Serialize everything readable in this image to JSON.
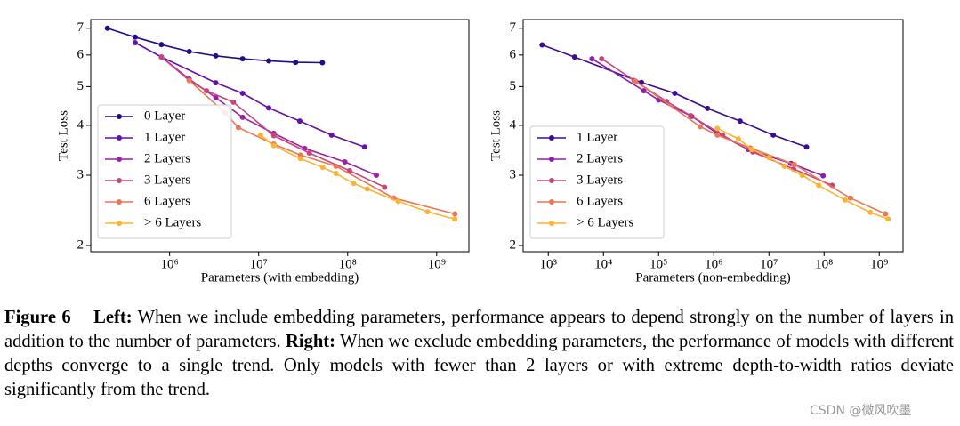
{
  "chart_data": [
    {
      "type": "line",
      "xlabel": "Parameters (with embedding)",
      "ylabel": "Test Loss",
      "xscale": "log",
      "yscale": "log",
      "xlim": [
        130000,
        2300000000
      ],
      "ylim": [
        1.93,
        7.36
      ],
      "xticks": [
        {
          "value": 1000000,
          "label": "10⁶"
        },
        {
          "value": 10000000,
          "label": "10⁷"
        },
        {
          "value": 100000000,
          "label": "10⁸"
        },
        {
          "value": 1000000000,
          "label": "10⁹"
        }
      ],
      "yticks": [
        2,
        3,
        4,
        5,
        6,
        7
      ],
      "legend": "lower left",
      "series": [
        {
          "name": "0 Layer",
          "color": "#240b8c",
          "x": [
            200000,
            410000,
            810000,
            1660000,
            3300000,
            6600000,
            13000000,
            26000000,
            52000000
          ],
          "values": [
            7.0,
            6.65,
            6.37,
            6.12,
            5.97,
            5.87,
            5.8,
            5.75,
            5.74
          ]
        },
        {
          "name": "1 Layer",
          "color": "#6510a8",
          "x": [
            410000,
            810000,
            3300000,
            6600000,
            13000000,
            29000000,
            66000000,
            155000000
          ],
          "values": [
            6.44,
            5.93,
            5.11,
            4.81,
            4.42,
            4.1,
            3.78,
            3.53
          ]
        },
        {
          "name": "2 Layers",
          "color": "#9a22a6",
          "x": [
            810000,
            1660000,
            3300000,
            6600000,
            14800000,
            33000000,
            93000000,
            210000000
          ],
          "values": [
            5.93,
            5.22,
            4.69,
            4.19,
            3.82,
            3.5,
            3.24,
            3.0
          ]
        },
        {
          "name": "3 Layers",
          "color": "#c9457a",
          "x": [
            810000,
            1660000,
            2600000,
            5200000,
            14800000,
            37000000,
            105000000,
            260000000
          ],
          "values": [
            5.93,
            5.18,
            4.88,
            4.57,
            3.77,
            3.41,
            3.08,
            2.8
          ]
        },
        {
          "name": "6 Layers",
          "color": "#ea7756",
          "x": [
            1660000,
            4200000,
            5900000,
            14800000,
            29500000,
            74000000,
            330000000,
            1600000000
          ],
          "values": [
            5.18,
            4.3,
            3.95,
            3.59,
            3.37,
            3.16,
            2.63,
            2.4
          ]
        },
        {
          "name": "> 6 Layers",
          "color": "#fbb333",
          "x": [
            10500000,
            14800000,
            29500000,
            52500000,
            74000000,
            117000000,
            166000000,
            370000000,
            790000000,
            1600000000
          ],
          "values": [
            3.78,
            3.56,
            3.3,
            3.14,
            3.03,
            2.86,
            2.77,
            2.58,
            2.43,
            2.33
          ]
        }
      ]
    },
    {
      "type": "line",
      "xlabel": "Parameters (non-embedding)",
      "ylabel": "Test Loss",
      "xscale": "log",
      "yscale": "log",
      "xlim": [
        350,
        2700000000
      ],
      "ylim": [
        1.93,
        7.36
      ],
      "xticks": [
        {
          "value": 1000,
          "label": "10³"
        },
        {
          "value": 10000,
          "label": "10⁴"
        },
        {
          "value": 100000,
          "label": "10⁵"
        },
        {
          "value": 1000000,
          "label": "10⁶"
        },
        {
          "value": 10000000,
          "label": "10⁷"
        },
        {
          "value": 100000000,
          "label": "10⁸"
        },
        {
          "value": 1000000000,
          "label": "10⁹"
        }
      ],
      "yticks": [
        2,
        3,
        4,
        5,
        6,
        7
      ],
      "legend": "lower left",
      "series": [
        {
          "name": "1 Layer",
          "color": "#3d0b94",
          "x": [
            770,
            3000,
            49000,
            196000,
            770000,
            3000000,
            12000000,
            48000000
          ],
          "values": [
            6.36,
            5.93,
            5.12,
            4.81,
            4.41,
            4.1,
            3.78,
            3.53
          ]
        },
        {
          "name": "2 Layers",
          "color": "#8d1ea9",
          "x": [
            6200,
            54000,
            100000,
            400000,
            1160000,
            4200000,
            25000000,
            96000000
          ],
          "values": [
            5.87,
            4.88,
            4.63,
            4.21,
            3.82,
            3.48,
            3.21,
            2.99
          ]
        },
        {
          "name": "3 Layers",
          "color": "#c9457a",
          "x": [
            9300,
            36000,
            140000,
            380000,
            1450000,
            5100000,
            28000000,
            140000000
          ],
          "values": [
            5.87,
            5.18,
            4.59,
            4.23,
            3.78,
            3.43,
            3.11,
            2.83
          ]
        },
        {
          "name": "6 Layers",
          "color": "#ea7756",
          "x": [
            38000,
            570000,
            1160000,
            4600000,
            29000000,
            300000000,
            1300000000
          ],
          "values": [
            5.16,
            3.97,
            3.78,
            3.51,
            3.19,
            2.63,
            2.4
          ]
        },
        {
          "name": "> 6 Layers",
          "color": "#fbb333",
          "x": [
            1160000,
            2800000,
            4900000,
            10000000,
            19000000,
            40000000,
            80000000,
            240000000,
            690000000,
            1450000000
          ],
          "values": [
            3.93,
            3.7,
            3.48,
            3.32,
            3.16,
            3.0,
            2.83,
            2.6,
            2.42,
            2.33
          ]
        }
      ]
    }
  ],
  "caption": {
    "figure": "Figure 6",
    "left_label": "Left:",
    "left_text": "When we include embedding parameters, performance appears to depend strongly on the number of layers in addition to the number of parameters.",
    "right_label": "Right:",
    "right_text": "When we exclude embedding parameters, the performance of models with different depths converge to a single trend. Only models with fewer than 2 layers or with extreme depth-to-width ratios deviate significantly from the trend."
  },
  "watermark": "CSDN @微风吹墨"
}
